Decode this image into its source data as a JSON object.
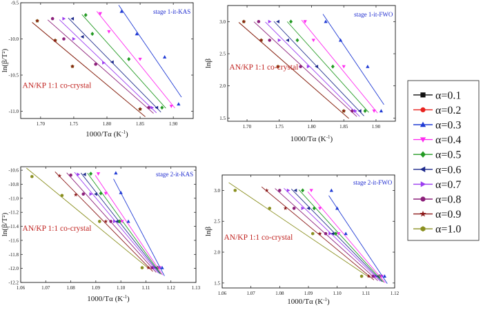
{
  "legend": [
    {
      "label": "α=0.1",
      "color": "#111111",
      "marker": "square"
    },
    {
      "label": "α=0.2",
      "color": "#e8221f",
      "marker": "circle"
    },
    {
      "label": "α=0.3",
      "color": "#1f3ad4",
      "marker": "triangle-up"
    },
    {
      "label": "α=0.4",
      "color": "#ff2cf0",
      "marker": "triangle-down"
    },
    {
      "label": "α=0.5",
      "color": "#239a23",
      "marker": "diamond"
    },
    {
      "label": "α=0.6",
      "color": "#1d2a8c",
      "marker": "triangle-left"
    },
    {
      "label": "α=0.7",
      "color": "#9b3cf0",
      "marker": "triangle-right"
    },
    {
      "label": "α=0.8",
      "color": "#8c1f7a",
      "marker": "circle"
    },
    {
      "label": "α=0.9",
      "color": "#8c1a1a",
      "marker": "star"
    },
    {
      "label": "α=1.0",
      "color": "#8a8f1f",
      "marker": "hexagon"
    }
  ],
  "chart_data": [
    {
      "type": "scatter",
      "stage_label": "stage 1-it-KAS",
      "sample_label": "AN/KP 1:1 co-crystal",
      "xlabel_main": "1000/Tα (K",
      "xlabel_sup": "-1",
      "xlabel_end": ")",
      "ylabel": "ln(β/T²)",
      "xlim": [
        1.67,
        1.93
      ],
      "ylim": [
        -11.1,
        -9.5
      ],
      "xticks": [
        1.7,
        1.75,
        1.8,
        1.85,
        1.9
      ],
      "yticks": [
        -9.5,
        -10.0,
        -10.5,
        -11.0
      ],
      "xtick_labels": [
        "1.70",
        "1.75",
        "1.80",
        "1.85",
        "1.90"
      ],
      "ytick_labels": [
        "-9.5",
        "-10.0",
        "-10.5",
        "-11.0"
      ],
      "series": [
        {
          "name": "α=1.0",
          "x": [
            1.695,
            1.722,
            1.748,
            1.85
          ],
          "y": [
            -9.75,
            -10.02,
            -10.38,
            -10.97
          ]
        },
        {
          "name": "α=0.9",
          "x": [
            1.695,
            1.722,
            1.748,
            1.85
          ],
          "y": [
            -9.75,
            -10.02,
            -10.38,
            -10.97
          ]
        },
        {
          "name": "α=0.8",
          "x": [
            1.718,
            1.735,
            1.783,
            1.863
          ],
          "y": [
            -9.72,
            -10.0,
            -10.35,
            -10.95
          ]
        },
        {
          "name": "α=0.7",
          "x": [
            1.735,
            1.75,
            1.795,
            1.868
          ],
          "y": [
            -9.72,
            -10.0,
            -10.33,
            -10.95
          ]
        },
        {
          "name": "α=0.6",
          "x": [
            1.748,
            1.763,
            1.808,
            1.875
          ],
          "y": [
            -9.72,
            -9.97,
            -10.32,
            -10.95
          ]
        },
        {
          "name": "α=0.5",
          "x": [
            1.768,
            1.778,
            1.833,
            1.883
          ],
          "y": [
            -9.67,
            -9.93,
            -10.28,
            -10.95
          ]
        },
        {
          "name": "α=0.4",
          "x": [
            1.79,
            1.803,
            1.85,
            1.897
          ],
          "y": [
            -9.65,
            -9.9,
            -10.28,
            -10.93
          ]
        },
        {
          "name": "α=0.3",
          "x": [
            1.822,
            1.845,
            1.887,
            1.908
          ],
          "y": [
            -9.62,
            -9.93,
            -10.25,
            -10.9
          ]
        }
      ]
    },
    {
      "type": "scatter",
      "stage_label": "stage 1-it-FWO",
      "sample_label": "AN/KP 1:1 co-crystal",
      "xlabel_main": "1000/Tα (K",
      "xlabel_sup": "-1",
      "xlabel_end": ")",
      "ylabel": "lnβ",
      "xlim": [
        1.67,
        1.93
      ],
      "ylim": [
        1.45,
        3.25
      ],
      "xticks": [
        1.7,
        1.75,
        1.8,
        1.85,
        1.9
      ],
      "yticks": [
        1.5,
        2.0,
        2.5,
        3.0
      ],
      "xtick_labels": [
        "1.70",
        "1.75",
        "1.80",
        "1.85",
        "1.90"
      ],
      "ytick_labels": [
        "1.5",
        "2.0",
        "2.5",
        "3.0"
      ],
      "series": [
        {
          "name": "α=1.0",
          "x": [
            1.695,
            1.722,
            1.748,
            1.85
          ],
          "y": [
            3.0,
            2.71,
            2.3,
            1.61
          ]
        },
        {
          "name": "α=0.9",
          "x": [
            1.695,
            1.722,
            1.748,
            1.85
          ],
          "y": [
            3.0,
            2.71,
            2.3,
            1.61
          ]
        },
        {
          "name": "α=0.8",
          "x": [
            1.718,
            1.735,
            1.783,
            1.863
          ],
          "y": [
            3.0,
            2.71,
            2.3,
            1.61
          ]
        },
        {
          "name": "α=0.7",
          "x": [
            1.735,
            1.75,
            1.795,
            1.868
          ],
          "y": [
            3.0,
            2.71,
            2.3,
            1.61
          ]
        },
        {
          "name": "α=0.6",
          "x": [
            1.748,
            1.763,
            1.808,
            1.875
          ],
          "y": [
            3.0,
            2.71,
            2.3,
            1.61
          ]
        },
        {
          "name": "α=0.5",
          "x": [
            1.768,
            1.778,
            1.833,
            1.883
          ],
          "y": [
            3.0,
            2.71,
            2.3,
            1.61
          ]
        },
        {
          "name": "α=0.4",
          "x": [
            1.79,
            1.803,
            1.85,
            1.897
          ],
          "y": [
            3.0,
            2.71,
            2.3,
            1.61
          ]
        },
        {
          "name": "α=0.3",
          "x": [
            1.822,
            1.845,
            1.887,
            1.908
          ],
          "y": [
            3.0,
            2.71,
            2.3,
            1.61
          ]
        }
      ]
    },
    {
      "type": "scatter",
      "stage_label": "stage 2-it-KAS",
      "sample_label": "AN/KP 1:1 co-crystal",
      "xlabel_main": "1000/Tα (K",
      "xlabel_sup": "-1",
      "xlabel_end": ")",
      "ylabel": "ln(β/T²)",
      "xlim": [
        1.06,
        1.13
      ],
      "ylim": [
        -12.2,
        -10.55
      ],
      "xticks": [
        1.06,
        1.07,
        1.08,
        1.09,
        1.1,
        1.11,
        1.12,
        1.13
      ],
      "yticks": [
        -10.6,
        -10.8,
        -11.0,
        -11.2,
        -11.4,
        -11.6,
        -11.8,
        -12.0,
        -12.2
      ],
      "xtick_labels": [
        "1.06",
        "1.07",
        "1.08",
        "1.09",
        "1.10",
        "1.11",
        "1.12",
        "1.13"
      ],
      "ytick_labels": [
        "-10.6",
        "-10.8",
        "-11.0",
        "-11.2",
        "-11.4",
        "-11.6",
        "-11.8",
        "-12.0",
        "-12.2"
      ],
      "series": [
        {
          "name": "α=1.0",
          "x": [
            1.0645,
            1.0765,
            1.0915,
            1.1085
          ],
          "y": [
            -10.69,
            -10.96,
            -11.33,
            -11.99
          ]
        },
        {
          "name": "α=0.9",
          "x": [
            1.0755,
            1.082,
            1.094,
            1.111
          ],
          "y": [
            -10.68,
            -10.95,
            -11.33,
            -11.99
          ]
        },
        {
          "name": "α=0.8",
          "x": [
            1.08,
            1.085,
            1.096,
            1.1125
          ],
          "y": [
            -10.67,
            -10.94,
            -11.33,
            -11.99
          ]
        },
        {
          "name": "α=0.7",
          "x": [
            1.083,
            1.088,
            1.0975,
            1.1135
          ],
          "y": [
            -10.66,
            -10.94,
            -11.33,
            -11.99
          ]
        },
        {
          "name": "α=0.6",
          "x": [
            1.0855,
            1.09,
            1.0985,
            1.1142
          ],
          "y": [
            -10.66,
            -10.94,
            -11.33,
            -11.99
          ]
        },
        {
          "name": "α=0.5",
          "x": [
            1.088,
            1.092,
            1.0995,
            1.1148
          ],
          "y": [
            -10.65,
            -10.93,
            -11.33,
            -11.99
          ]
        },
        {
          "name": "α=0.4",
          "x": [
            1.091,
            1.094,
            1.1005,
            1.1155
          ],
          "y": [
            -10.65,
            -10.93,
            -11.33,
            -11.99
          ]
        },
        {
          "name": "α=0.3",
          "x": [
            1.098,
            1.1,
            1.103,
            1.1165
          ],
          "y": [
            -10.64,
            -10.92,
            -11.33,
            -11.99
          ]
        }
      ]
    },
    {
      "type": "scatter",
      "stage_label": "stage 2-it-FWO",
      "sample_label": "AN/KP 1:1 co-crystal",
      "xlabel_main": "1000/Tα (K",
      "xlabel_sup": "-1",
      "xlabel_end": ")",
      "ylabel": "lnβ",
      "xlim": [
        1.06,
        1.12
      ],
      "ylim": [
        1.42,
        3.25
      ],
      "xticks": [
        1.06,
        1.07,
        1.08,
        1.09,
        1.1,
        1.11,
        1.12
      ],
      "yticks": [
        1.5,
        2.0,
        2.5,
        3.0
      ],
      "xtick_labels": [
        "1.06",
        "1.07",
        "1.08",
        "1.09",
        "1.10",
        "1.11",
        "1.12"
      ],
      "ytick_labels": [
        "1.5",
        "2.0",
        "2.5",
        "3.0"
      ],
      "series": [
        {
          "name": "α=1.0",
          "x": [
            1.0645,
            1.0765,
            1.0915,
            1.1085
          ],
          "y": [
            3.0,
            2.71,
            2.3,
            1.61
          ]
        },
        {
          "name": "α=0.9",
          "x": [
            1.0755,
            1.082,
            1.094,
            1.111
          ],
          "y": [
            3.0,
            2.71,
            2.3,
            1.61
          ]
        },
        {
          "name": "α=0.8",
          "x": [
            1.08,
            1.085,
            1.096,
            1.1125
          ],
          "y": [
            3.0,
            2.71,
            2.3,
            1.61
          ]
        },
        {
          "name": "α=0.7",
          "x": [
            1.083,
            1.088,
            1.0975,
            1.1135
          ],
          "y": [
            3.0,
            2.71,
            2.3,
            1.61
          ]
        },
        {
          "name": "α=0.6",
          "x": [
            1.0855,
            1.09,
            1.0985,
            1.1142
          ],
          "y": [
            3.0,
            2.71,
            2.3,
            1.61
          ]
        },
        {
          "name": "α=0.5",
          "x": [
            1.088,
            1.092,
            1.0995,
            1.1148
          ],
          "y": [
            3.0,
            2.71,
            2.3,
            1.61
          ]
        },
        {
          "name": "α=0.4",
          "x": [
            1.091,
            1.094,
            1.1005,
            1.1155
          ],
          "y": [
            3.0,
            2.71,
            2.3,
            1.61
          ]
        },
        {
          "name": "α=0.3",
          "x": [
            1.098,
            1.1,
            1.103,
            1.1165
          ],
          "y": [
            3.0,
            2.71,
            2.3,
            1.61
          ]
        }
      ]
    }
  ]
}
